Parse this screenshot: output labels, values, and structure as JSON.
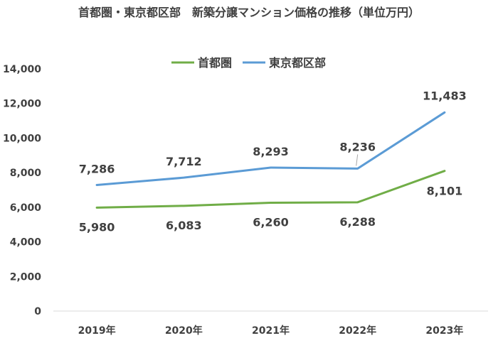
{
  "chart_data": {
    "type": "line",
    "title": "首都圏・東京都区部　新築分譲マンション価格の推移（単位万円）",
    "categories": [
      "2019年",
      "2020年",
      "2021年",
      "2022年",
      "2023年"
    ],
    "ylim": [
      0,
      14000
    ],
    "yticks": [
      "0",
      "2,000",
      "4,000",
      "6,000",
      "8,000",
      "10,000",
      "12,000",
      "14,000"
    ],
    "ytick_values": [
      0,
      2000,
      4000,
      6000,
      8000,
      10000,
      12000,
      14000
    ],
    "grid": false,
    "legend_position": "top-center",
    "series": [
      {
        "name": "首都圏",
        "color": "#70ad47",
        "values": [
          5980,
          6083,
          6260,
          6288,
          8101
        ],
        "labels": [
          "5,980",
          "6,083",
          "6,260",
          "6,288",
          "8,101"
        ]
      },
      {
        "name": "東京都区部",
        "color": "#5b9bd5",
        "values": [
          7286,
          7712,
          8293,
          8236,
          11483
        ],
        "labels": [
          "7,286",
          "7,712",
          "8,293",
          "8,236",
          "11,483"
        ]
      }
    ]
  }
}
